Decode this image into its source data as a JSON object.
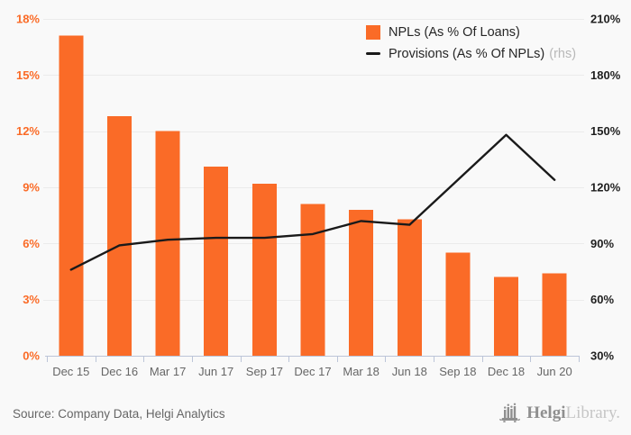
{
  "chart_data": {
    "type": "bar",
    "title": "",
    "categories": [
      "Dec 15",
      "Dec 16",
      "Mar 17",
      "Jun 17",
      "Sep 17",
      "Dec 17",
      "Mar 18",
      "Jun 18",
      "Sep 18",
      "Dec 18",
      "Jun 20"
    ],
    "series": [
      {
        "name": "NPLs (As % Of Loans)",
        "type": "bar",
        "axis": "left",
        "color": "#fa6b27",
        "values": [
          17.1,
          12.8,
          12.0,
          10.1,
          9.2,
          8.1,
          7.8,
          7.3,
          5.5,
          4.2,
          4.4
        ]
      },
      {
        "name": "Provisions (As % Of NPLs)",
        "axis_note": "(rhs)",
        "type": "line",
        "axis": "right",
        "color": "#1a1a1a",
        "values": [
          76,
          89,
          92,
          93,
          93,
          95,
          102,
          100,
          124,
          148,
          124
        ]
      }
    ],
    "left_axis": {
      "min": 0,
      "max": 18,
      "step": 3,
      "suffix": "%",
      "color": "#fa6b27"
    },
    "right_axis": {
      "min": 30,
      "max": 210,
      "step": 30,
      "suffix": "%",
      "color": "#1f1f1f"
    },
    "grid": true,
    "legend_position": "top-right"
  },
  "footer": {
    "source": "Source: Company Data, Helgi Analytics",
    "brand_bold": "Helgi",
    "brand_light": "Library."
  },
  "icons": {
    "legend_bar_swatch": "orange-square",
    "legend_line_swatch": "black-dash",
    "logo": "helgi-bar-chart-logo"
  },
  "colors": {
    "bar": "#fa6b27",
    "line": "#1a1a1a",
    "background": "#f9f9f9",
    "grid": "#ebebeb",
    "axis_line": "#bcc5d8",
    "left_tick_label": "#fa6b27",
    "right_tick_label": "#1f1f1f",
    "x_tick_label": "#666666",
    "source_text": "#666666",
    "legend_text": "#262626",
    "rhs_note": "#b8b8b8",
    "logo_dark": "#8f8f8f",
    "logo_light": "#c6c6c6"
  }
}
